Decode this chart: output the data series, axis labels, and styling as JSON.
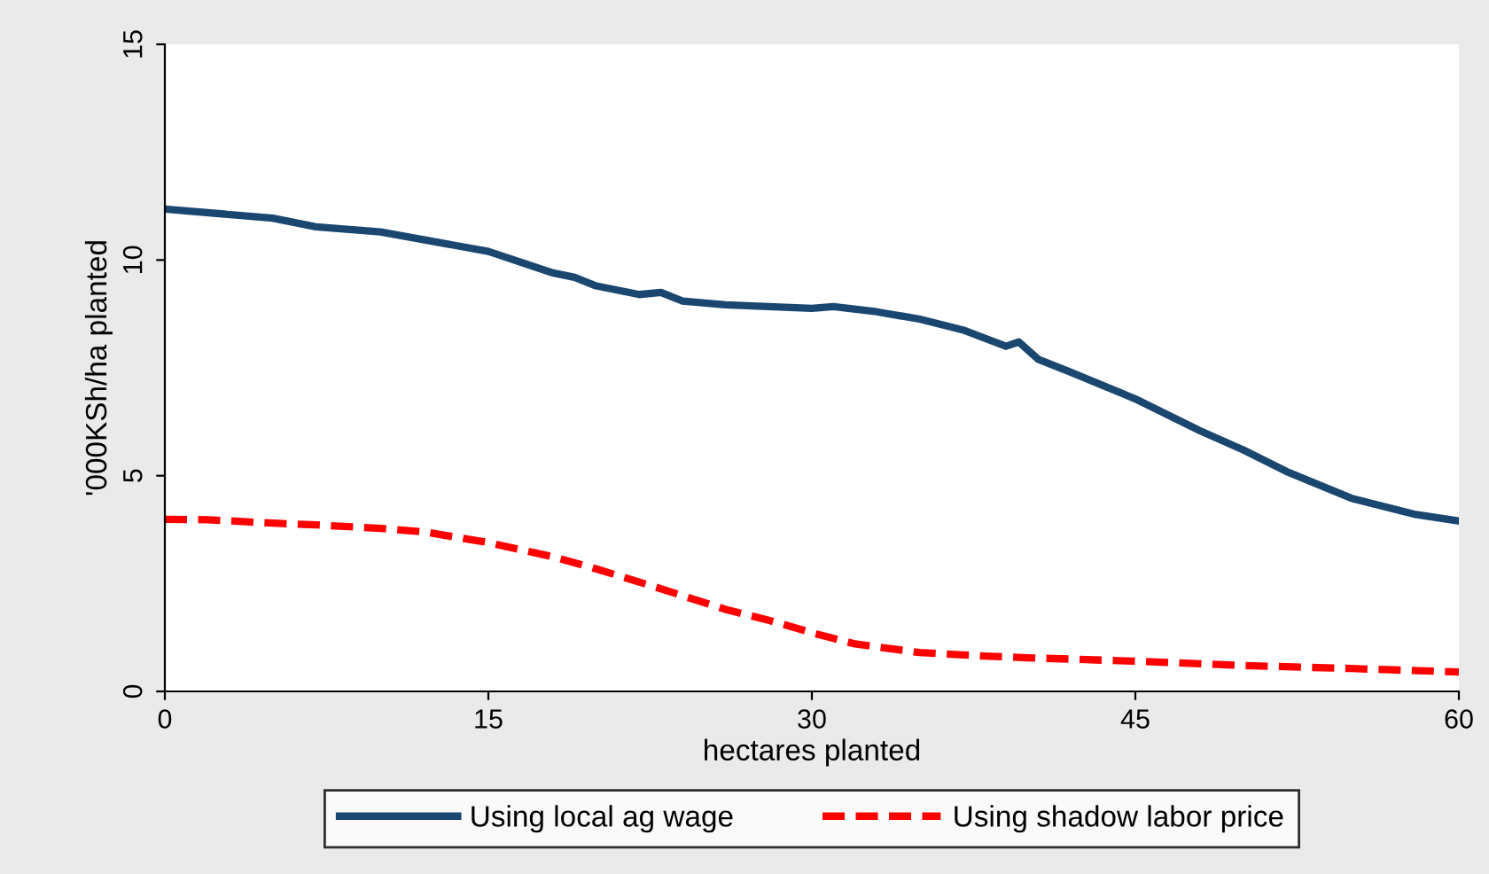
{
  "chart_data": {
    "type": "line",
    "xlabel": "hectares planted",
    "ylabel": "'000KSh/ha planted",
    "xlim": [
      0,
      60
    ],
    "ylim": [
      0,
      15
    ],
    "xticks": [
      0,
      15,
      30,
      45,
      60
    ],
    "yticks": [
      0,
      5,
      10,
      15
    ],
    "grid": false,
    "legend": "bottom",
    "series": [
      {
        "name": "Using local ag wage",
        "color": "#1a476f",
        "line_style": "solid",
        "x": [
          0,
          5,
          7,
          10,
          15,
          18,
          19,
          20,
          22,
          23,
          24,
          26,
          28,
          30,
          31,
          33,
          35,
          37,
          39,
          39.6,
          40.5,
          42,
          45,
          48,
          50,
          52,
          55,
          58,
          60
        ],
        "values": [
          11.18,
          10.97,
          10.77,
          10.65,
          10.2,
          9.7,
          9.6,
          9.4,
          9.2,
          9.25,
          9.05,
          8.96,
          8.92,
          8.88,
          8.92,
          8.8,
          8.63,
          8.38,
          8.0,
          8.1,
          7.7,
          7.4,
          6.78,
          6.04,
          5.6,
          5.1,
          4.48,
          4.1,
          3.95
        ]
      },
      {
        "name": "Using shadow labor price",
        "color": "#ff0000",
        "line_style": "dashed",
        "x": [
          0,
          2,
          5,
          7,
          10,
          12,
          15,
          18,
          20,
          23,
          26,
          28,
          30,
          32,
          35,
          38,
          40,
          45,
          50,
          55,
          60
        ],
        "values": [
          3.99,
          3.98,
          3.9,
          3.86,
          3.78,
          3.7,
          3.45,
          3.12,
          2.84,
          2.38,
          1.9,
          1.65,
          1.36,
          1.1,
          0.9,
          0.82,
          0.78,
          0.7,
          0.6,
          0.53,
          0.45
        ]
      }
    ]
  }
}
